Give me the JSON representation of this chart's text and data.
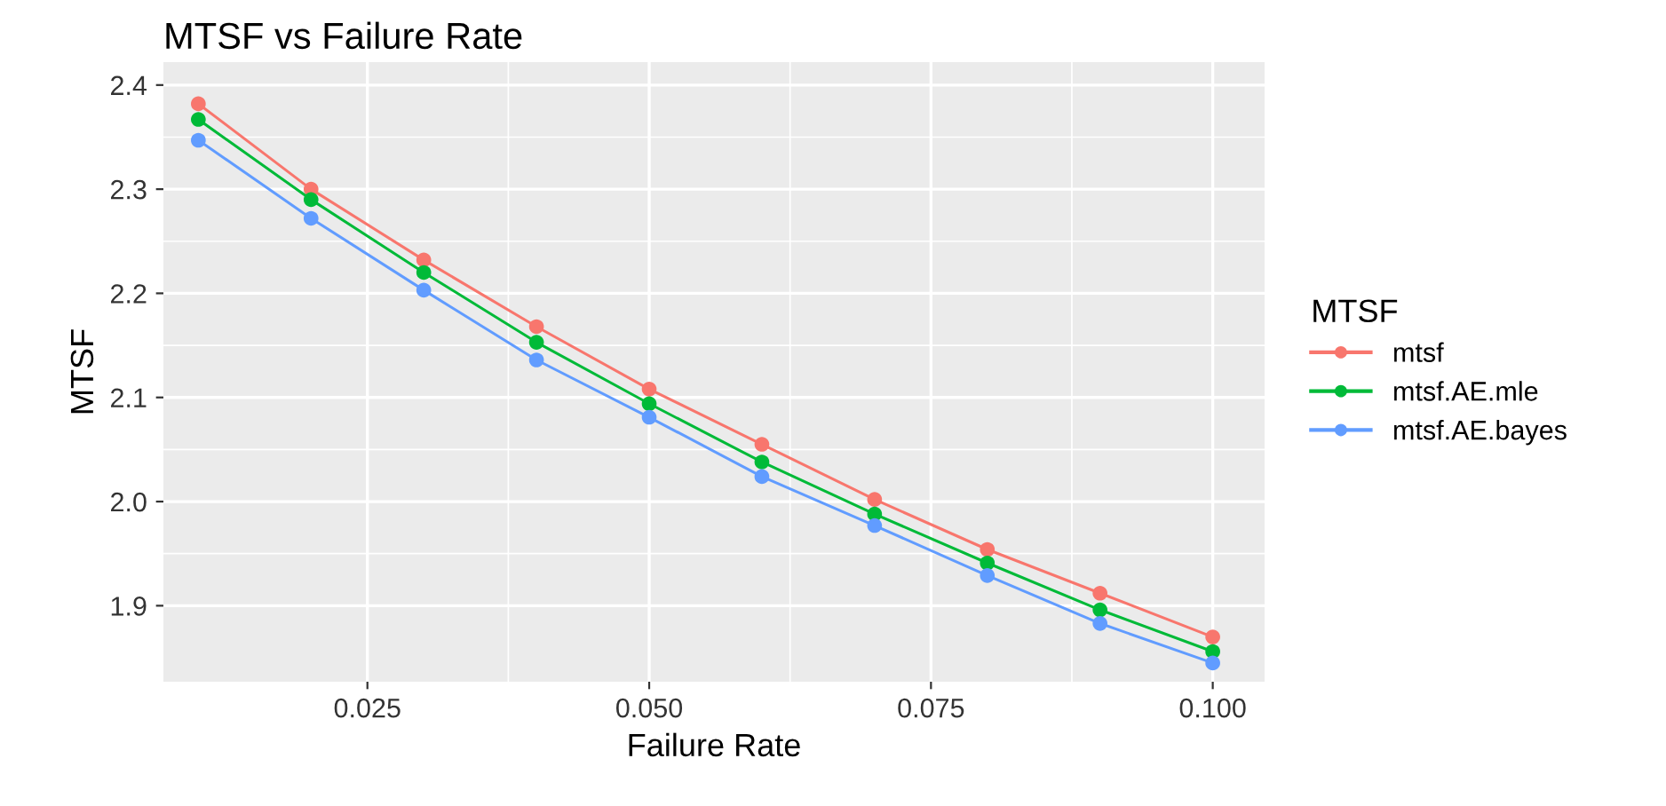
{
  "chart_data": {
    "type": "line",
    "title": "MTSF vs Failure Rate",
    "xlabel": "Failure Rate",
    "ylabel": "MTSF",
    "legend_title": "MTSF",
    "legend": "right",
    "grid": true,
    "marker": "circle",
    "line_style": "solid",
    "x": [
      0.01,
      0.02,
      0.03,
      0.04,
      0.05,
      0.06,
      0.07,
      0.08,
      0.09,
      0.1
    ],
    "series": [
      {
        "name": "mtsf",
        "color": "#f8766d",
        "values": [
          2.382,
          2.3,
          2.232,
          2.168,
          2.108,
          2.055,
          2.002,
          1.954,
          1.912,
          1.87
        ]
      },
      {
        "name": "mtsf.AE.mle",
        "color": "#00ba38",
        "values": [
          2.367,
          2.29,
          2.22,
          2.153,
          2.094,
          2.038,
          1.988,
          1.941,
          1.896,
          1.856
        ]
      },
      {
        "name": "mtsf.AE.bayes",
        "color": "#619cff",
        "values": [
          2.347,
          2.272,
          2.203,
          2.136,
          2.081,
          2.024,
          1.977,
          1.929,
          1.883,
          1.845
        ]
      }
    ],
    "xlim": [
      0.0069,
      0.1046
    ],
    "ylim": [
      1.827,
      2.422
    ],
    "xticks": [
      {
        "value": 0.025,
        "label": "0.025"
      },
      {
        "value": 0.05,
        "label": "0.050"
      },
      {
        "value": 0.075,
        "label": "0.075"
      },
      {
        "value": 0.1,
        "label": "0.100"
      }
    ],
    "yticks": [
      {
        "value": 1.9,
        "label": "1.9"
      },
      {
        "value": 2.0,
        "label": "2.0"
      },
      {
        "value": 2.1,
        "label": "2.1"
      },
      {
        "value": 2.2,
        "label": "2.2"
      },
      {
        "value": 2.3,
        "label": "2.3"
      },
      {
        "value": 2.4,
        "label": "2.4"
      }
    ]
  }
}
